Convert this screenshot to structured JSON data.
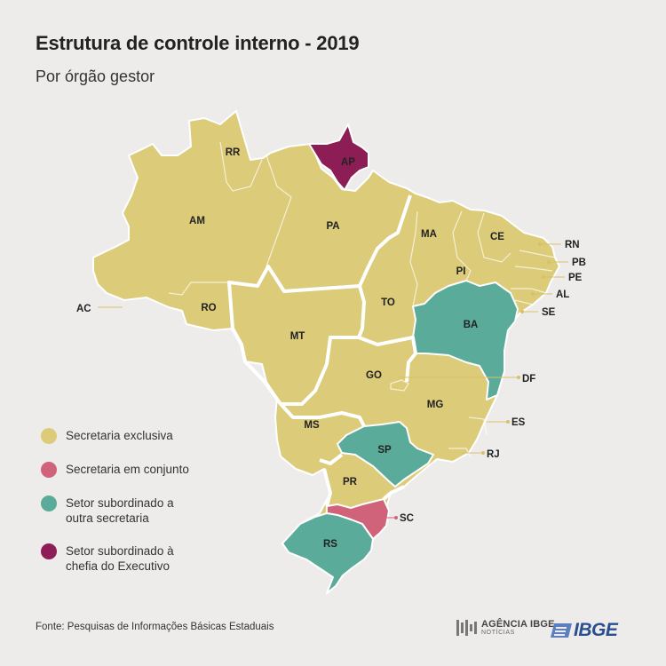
{
  "title": "Estrutura de controle interno - 2019",
  "subtitle": "Por órgão gestor",
  "colors": {
    "secretaria_exclusiva": "#dccb78",
    "secretaria_em_conjunto": "#d0637a",
    "setor_subordinado_secretaria": "#5aab9a",
    "setor_subordinado_executivo": "#8c1e55",
    "background": "#edeceb",
    "border": "#ffffff"
  },
  "legend": [
    {
      "key": "secretaria_exclusiva",
      "label": "Secretaria exclusiva"
    },
    {
      "key": "secretaria_em_conjunto",
      "label": "Secretaria em conjunto"
    },
    {
      "key": "setor_subordinado_secretaria",
      "label": "Setor subordinado a outra secretaria"
    },
    {
      "key": "setor_subordinado_executivo",
      "label": "Setor subordinado à chefia do Executivo"
    }
  ],
  "states": {
    "AC": "secretaria_exclusiva",
    "AM": "secretaria_exclusiva",
    "RR": "secretaria_exclusiva",
    "AP": "setor_subordinado_executivo",
    "PA": "secretaria_exclusiva",
    "RO": "secretaria_exclusiva",
    "MT": "secretaria_exclusiva",
    "TO": "secretaria_exclusiva",
    "MA": "secretaria_exclusiva",
    "PI": "secretaria_exclusiva",
    "CE": "secretaria_exclusiva",
    "RN": "secretaria_exclusiva",
    "PB": "secretaria_exclusiva",
    "PE": "secretaria_exclusiva",
    "AL": "secretaria_exclusiva",
    "SE": "secretaria_exclusiva",
    "BA": "setor_subordinado_secretaria",
    "GO": "secretaria_exclusiva",
    "DF": "secretaria_exclusiva",
    "MG": "secretaria_exclusiva",
    "ES": "secretaria_exclusiva",
    "RJ": "secretaria_exclusiva",
    "SP": "setor_subordinado_secretaria",
    "MS": "secretaria_exclusiva",
    "PR": "secretaria_exclusiva",
    "SC": "secretaria_em_conjunto",
    "RS": "setor_subordinado_secretaria"
  },
  "source": "Fonte: Pesquisas de Informações Básicas Estaduais",
  "logos": {
    "agencia_line1": "AGÊNCIA IBGE",
    "agencia_line2": "NOTÍCIAS",
    "ibge": "IBGE"
  }
}
